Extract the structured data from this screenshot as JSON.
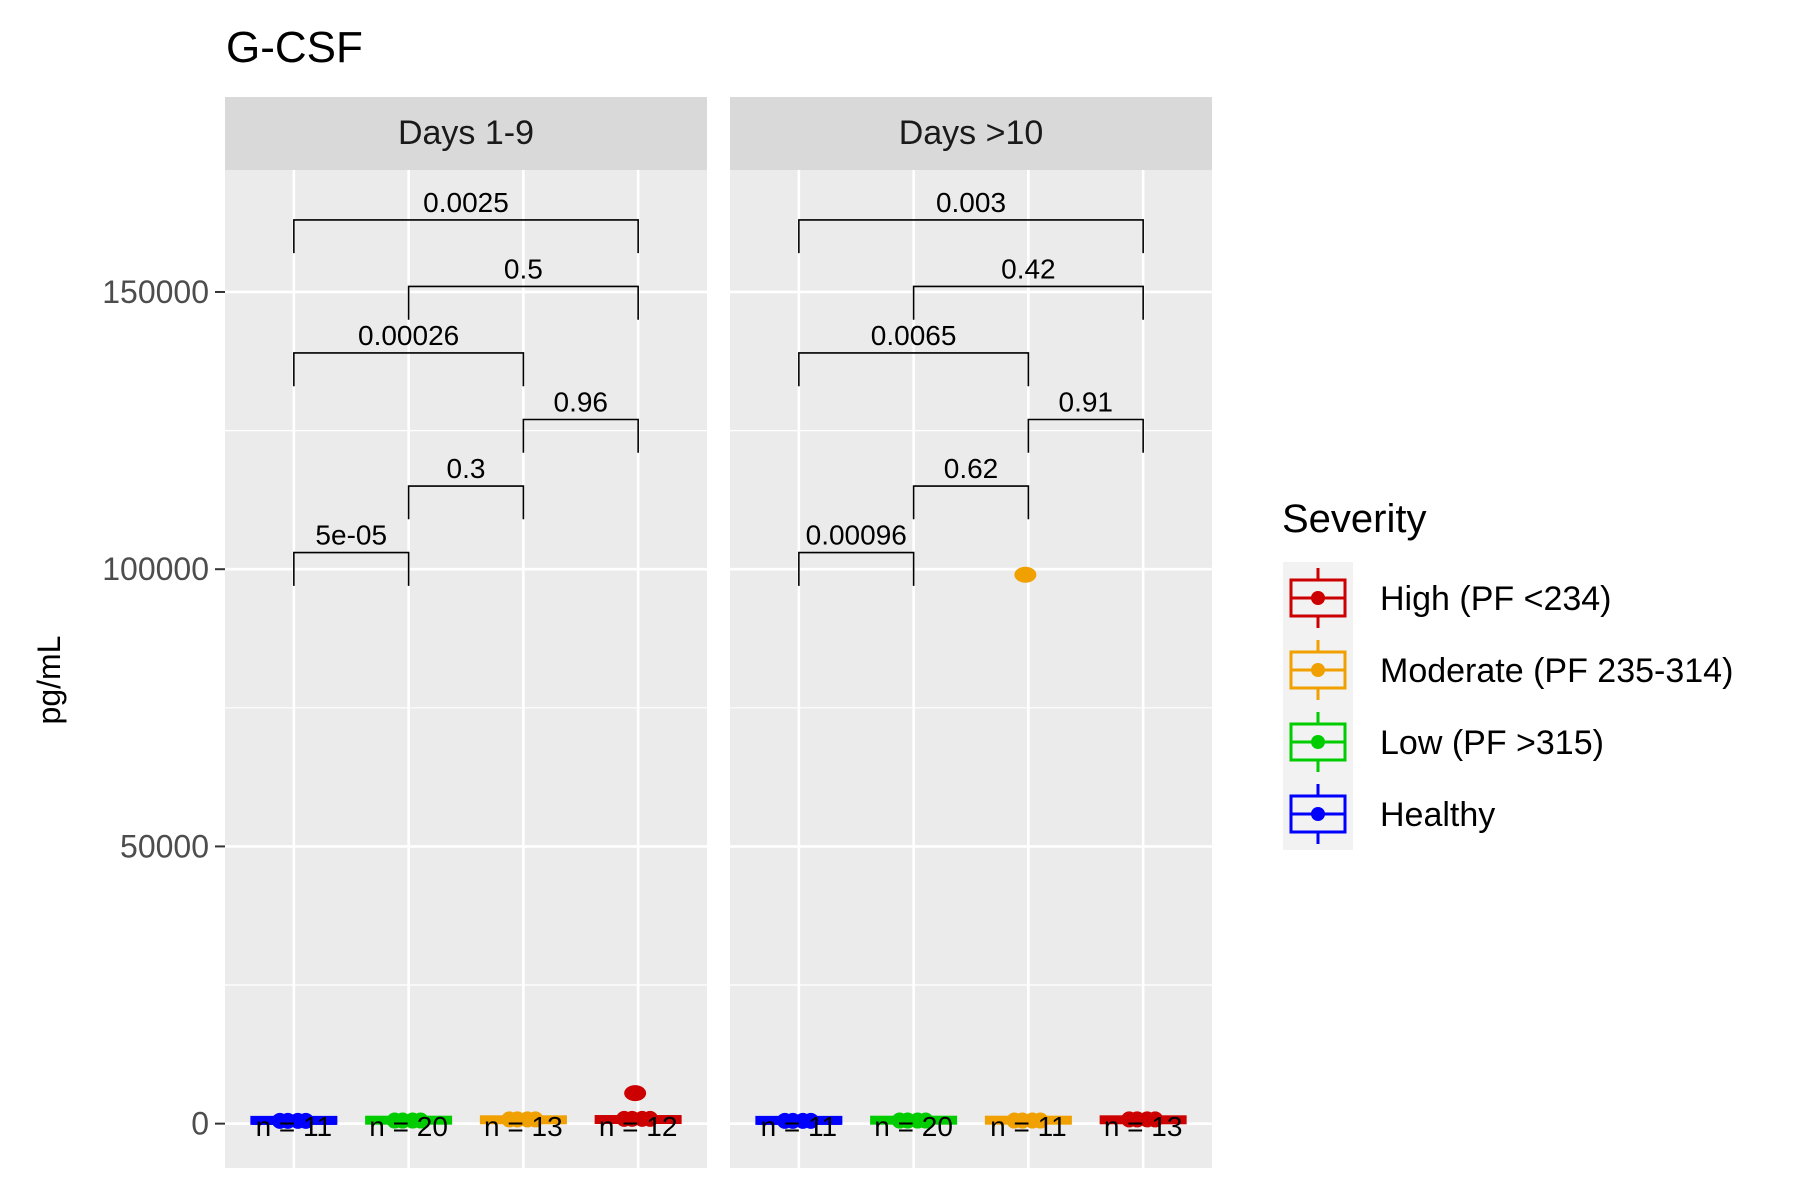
{
  "chart_data": {
    "type": "box",
    "title": "G-CSF",
    "ylabel": "pg/mL",
    "ylim": [
      -8000,
      172000
    ],
    "yticks": [
      0,
      50000,
      100000,
      150000
    ],
    "ytick_labels": [
      "0",
      "50000",
      "100000",
      "150000"
    ],
    "grid": true,
    "legend": {
      "title": "Severity",
      "position": "right",
      "items": [
        {
          "label": "High (PF <234)",
          "color": "#CC0000"
        },
        {
          "label": "Moderate (PF 235-314)",
          "color": "#F0A000"
        },
        {
          "label": "Low (PF >315)",
          "color": "#00CC00"
        },
        {
          "label": "Healthy",
          "color": "#0000FF"
        }
      ]
    },
    "panels": [
      {
        "strip": "Days 1-9",
        "groups": [
          {
            "severity": "Healthy",
            "color": "#0000FF",
            "n_label": "n = 11",
            "median": 150,
            "q1": 50,
            "q3": 300,
            "outliers": []
          },
          {
            "severity": "Low (PF >315)",
            "color": "#00CC00",
            "n_label": "n = 20",
            "median": 200,
            "q1": 80,
            "q3": 400,
            "outliers": []
          },
          {
            "severity": "Moderate (PF 235-314)",
            "color": "#F0A000",
            "n_label": "n = 13",
            "median": 400,
            "q1": 150,
            "q3": 800,
            "outliers": []
          },
          {
            "severity": "High (PF <234)",
            "color": "#CC0000",
            "n_label": "n = 12",
            "median": 500,
            "q1": 200,
            "q3": 1000,
            "outliers": [
              5500
            ]
          }
        ],
        "comparisons": [
          {
            "from": 1,
            "to": 2,
            "y": 103000,
            "label": "5e-05"
          },
          {
            "from": 2,
            "to": 3,
            "y": 115000,
            "label": "0.3"
          },
          {
            "from": 3,
            "to": 4,
            "y": 127000,
            "label": "0.96"
          },
          {
            "from": 1,
            "to": 3,
            "y": 139000,
            "label": "0.00026"
          },
          {
            "from": 2,
            "to": 4,
            "y": 151000,
            "label": "0.5"
          },
          {
            "from": 1,
            "to": 4,
            "y": 163000,
            "label": "0.0025"
          }
        ]
      },
      {
        "strip": "Days >10",
        "groups": [
          {
            "severity": "Healthy",
            "color": "#0000FF",
            "n_label": "n = 11",
            "median": 150,
            "q1": 50,
            "q3": 300,
            "outliers": []
          },
          {
            "severity": "Low (PF >315)",
            "color": "#00CC00",
            "n_label": "n = 20",
            "median": 200,
            "q1": 80,
            "q3": 400,
            "outliers": []
          },
          {
            "severity": "Moderate (PF 235-314)",
            "color": "#F0A000",
            "n_label": "n = 11",
            "median": 200,
            "q1": 80,
            "q3": 400,
            "outliers": [
              99000
            ]
          },
          {
            "severity": "High (PF <234)",
            "color": "#CC0000",
            "n_label": "n = 13",
            "median": 400,
            "q1": 150,
            "q3": 700,
            "outliers": []
          }
        ],
        "comparisons": [
          {
            "from": 1,
            "to": 2,
            "y": 103000,
            "label": "0.00096"
          },
          {
            "from": 2,
            "to": 3,
            "y": 115000,
            "label": "0.62"
          },
          {
            "from": 3,
            "to": 4,
            "y": 127000,
            "label": "0.91"
          },
          {
            "from": 1,
            "to": 3,
            "y": 139000,
            "label": "0.0065"
          },
          {
            "from": 2,
            "to": 4,
            "y": 151000,
            "label": "0.42"
          },
          {
            "from": 1,
            "to": 4,
            "y": 163000,
            "label": "0.003"
          }
        ]
      }
    ]
  }
}
